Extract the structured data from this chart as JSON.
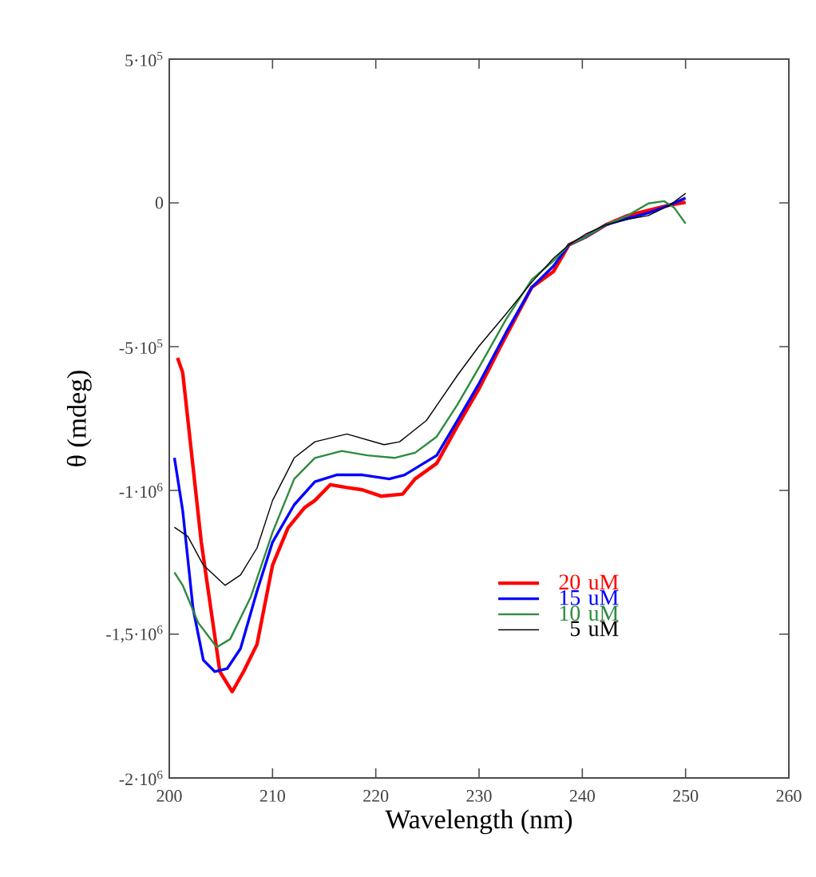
{
  "chart_data": {
    "type": "line",
    "xlabel": "Wavelength (nm)",
    "ylabel": "θ (mdeg)",
    "xlim": [
      200,
      260
    ],
    "ylim": [
      -2000000,
      500000
    ],
    "xticks": [
      200,
      210,
      220,
      230,
      240,
      250,
      260
    ],
    "yticks": [
      {
        "value": -2000000,
        "label": "-2·10$^{6}$"
      },
      {
        "value": -1500000,
        "label": "-1,5·10$^{6}$"
      },
      {
        "value": -1000000,
        "label": "-1·10$^{6}$"
      },
      {
        "value": -500000,
        "label": "-5·10$^{5}$"
      },
      0,
      {
        "value": 500000,
        "label": "5·10$^{5}$"
      }
    ],
    "grid": false,
    "legend": "bottom right",
    "line_style": "solid",
    "marker": "none",
    "series": [
      {
        "name": "20 uM",
        "color": "#ff0000",
        "x": [
          200.8,
          201.3,
          203.1,
          204.9,
          206.1,
          207.2,
          208.5,
          210,
          211.5,
          213.1,
          214.1,
          215.6,
          217.2,
          218.7,
          220.5,
          222.6,
          223.8,
          225.9,
          227.9,
          230,
          232.1,
          235.1,
          237.2,
          238.7,
          240.3,
          242.3,
          244.4,
          246.4,
          248.5,
          250
        ],
        "values": [
          -539000,
          -590000,
          -1180000,
          -1630000,
          -1700000,
          -1630000,
          -1535000,
          -1260000,
          -1130000,
          -1060000,
          -1035000,
          -980000,
          -990000,
          -998000,
          -1020000,
          -1013000,
          -960000,
          -906000,
          -776000,
          -646000,
          -498000,
          -294000,
          -239000,
          -146000,
          -119000,
          -76000,
          -44000,
          -26000,
          -7000,
          2000
        ]
      },
      {
        "name": "15 uM",
        "color": "#0000ff",
        "x": [
          200.5,
          201.3,
          202.3,
          203.3,
          204.4,
          205.6,
          206.9,
          208.5,
          210,
          212.1,
          214.1,
          216.2,
          218.7,
          221.3,
          222.8,
          225.9,
          227.9,
          230,
          232.6,
          235.1,
          237.2,
          238.7,
          240.3,
          242.3,
          244.4,
          246.4,
          248.5,
          250
        ],
        "values": [
          -887000,
          -1070000,
          -1410000,
          -1590000,
          -1630000,
          -1620000,
          -1550000,
          -1350000,
          -1180000,
          -1050000,
          -970000,
          -946000,
          -946000,
          -960000,
          -946000,
          -878000,
          -757000,
          -628000,
          -452000,
          -294000,
          -220000,
          -146000,
          -119000,
          -76000,
          -54000,
          -35000,
          -7000,
          17000
        ]
      },
      {
        "name": "10 uM",
        "color": "#2e8b3e",
        "x": [
          200.5,
          201.3,
          202.8,
          204.6,
          205.9,
          207.9,
          210,
          212.1,
          214.1,
          216.7,
          219.2,
          221.8,
          223.8,
          225.9,
          227.9,
          230,
          232.6,
          235.1,
          237.2,
          238.7,
          240.3,
          242.3,
          244.4,
          246.4,
          247.9,
          248.9,
          250
        ],
        "values": [
          -1285000,
          -1330000,
          -1460000,
          -1545000,
          -1517000,
          -1370000,
          -1146000,
          -960000,
          -887000,
          -863000,
          -878000,
          -887000,
          -869000,
          -813000,
          -702000,
          -572000,
          -406000,
          -267000,
          -202000,
          -146000,
          -119000,
          -76000,
          -44000,
          -2000,
          6000,
          -17000,
          -72000
        ]
      },
      {
        "name": "5 uM",
        "color": "#000000",
        "x": [
          200.5,
          201.8,
          203.3,
          205.4,
          206.9,
          208.5,
          210,
          212.1,
          214.1,
          217.2,
          220.8,
          222.3,
          224.9,
          227.9,
          230,
          232.6,
          235.1,
          237.2,
          238.7,
          240.3,
          242.3,
          244.4,
          246.4,
          248.5,
          250
        ],
        "values": [
          -1128000,
          -1160000,
          -1260000,
          -1330000,
          -1294000,
          -1200000,
          -1035000,
          -887000,
          -831000,
          -804000,
          -841000,
          -831000,
          -757000,
          -600000,
          -498000,
          -387000,
          -276000,
          -193000,
          -146000,
          -109000,
          -76000,
          -57000,
          -44000,
          -7000,
          33000
        ]
      }
    ]
  }
}
